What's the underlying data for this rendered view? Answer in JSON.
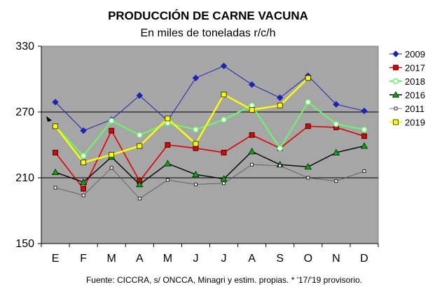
{
  "chart_data": {
    "type": "line",
    "title": "PRODUCCIÓN DE CARNE VACUNA",
    "subtitle": "En miles de toneladas r/c/h",
    "source": "Fuente: CICCRA, s/ ONCCA, Minagri y estim. propias. * '17/'19 provisorio.",
    "categories": [
      "E",
      "F",
      "M",
      "A",
      "M",
      "J",
      "J",
      "A",
      "S",
      "O",
      "N",
      "D"
    ],
    "ylim": [
      150,
      330
    ],
    "yticks": [
      150,
      210,
      270,
      330
    ],
    "grid": true,
    "legend_position": "right",
    "series": [
      {
        "name": "2009",
        "color": "#1f22b4",
        "marker": "diamond",
        "values": [
          279,
          253,
          263,
          285,
          262,
          301,
          312,
          295,
          283,
          303,
          277,
          271
        ]
      },
      {
        "name": "2017",
        "color": "#e00000",
        "marker": "square",
        "values": [
          233,
          200,
          253,
          207,
          240,
          237,
          233,
          249,
          237,
          257,
          256,
          248
        ]
      },
      {
        "name": "2018",
        "color": "#6cf46c",
        "marker": "circle",
        "values": [
          257,
          230,
          262,
          249,
          260,
          254,
          263,
          276,
          237,
          279,
          259,
          254
        ]
      },
      {
        "name": "2016",
        "color": "#000000",
        "marker": "triangle",
        "values": [
          215,
          206,
          229,
          204,
          223,
          213,
          209,
          234,
          222,
          220,
          233,
          239
        ]
      },
      {
        "name": "2011",
        "color": "#555555",
        "marker": "small-square",
        "values": [
          201,
          194,
          219,
          191,
          208,
          204,
          205,
          222,
          221,
          210,
          207,
          216
        ]
      },
      {
        "name": "2019",
        "color": "#ffff00",
        "marker": "square",
        "values": [
          257,
          224,
          231,
          239,
          264,
          241,
          286,
          272,
          276,
          301,
          null,
          null
        ]
      }
    ]
  }
}
